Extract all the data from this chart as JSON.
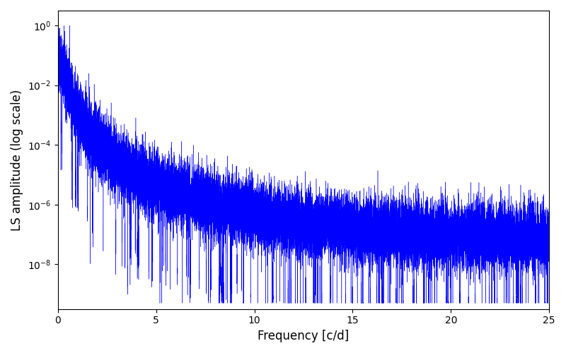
{
  "xlabel": "Frequency [c/d]",
  "ylabel": "LS amplitude (log scale)",
  "line_color": "#0000ff",
  "xlim": [
    0,
    25
  ],
  "ylim_log_min": -9.5,
  "ylim_log_max": 0.5,
  "x_ticks": [
    0,
    5,
    10,
    15,
    20,
    25
  ],
  "figsize": [
    8.0,
    5.0
  ],
  "dpi": 100,
  "num_points": 25000,
  "freq_max": 25.0,
  "seed": 7,
  "background_color": "#ffffff",
  "linewidth": 0.3,
  "peak_freq": 0.6,
  "alpha_decay": 3.5,
  "knee_freq": 0.35,
  "base_level_log": -6.0,
  "noise_std": 1.2,
  "num_deep_nulls": 200
}
